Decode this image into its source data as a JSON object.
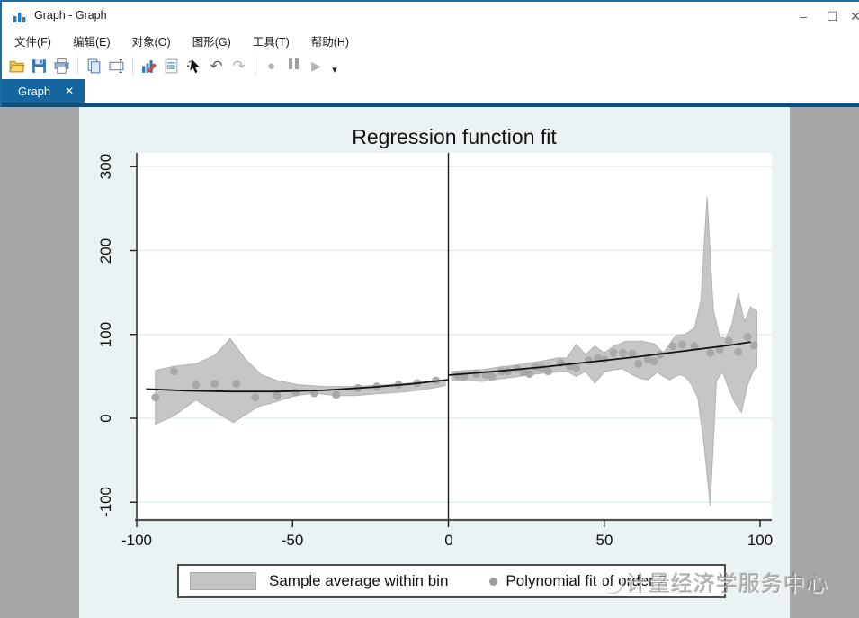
{
  "window": {
    "title": "Graph - Graph",
    "controls": {
      "minimize": "–",
      "maximize": "☐",
      "close": "✕"
    }
  },
  "menu": {
    "items": [
      "文件(F)",
      "编辑(E)",
      "对象(O)",
      "图形(G)",
      "工具(T)",
      "帮助(H)"
    ]
  },
  "toolbar": {
    "icons": [
      "open-folder",
      "save",
      "print",
      "copy",
      "rename",
      "graph-editor",
      "log",
      "pointer-deselect",
      "undo",
      "redo",
      "record",
      "pause",
      "play",
      "more"
    ],
    "undo_glyph": "↶",
    "redo_glyph": "↷",
    "record_glyph": "●",
    "play_glyph": "▶",
    "more_glyph": "▾"
  },
  "tab": {
    "label": "Graph",
    "close": "✕"
  },
  "watermark": {
    "text": "计量经济学服务中心"
  },
  "chart_data": {
    "type": "scatter",
    "title": "Regression function fit",
    "xlabel": "",
    "ylabel": "",
    "xlim": [
      -100,
      100
    ],
    "ylim": [
      -100,
      300
    ],
    "x_ticks": [
      -100,
      -50,
      0,
      50,
      100
    ],
    "y_ticks": [
      -100,
      0,
      100,
      200,
      300
    ],
    "grid": "horizontal",
    "cutoff_x": 0,
    "legend_position": "bottom",
    "colors": {
      "band": "#c4c4c4",
      "band_edge": "#b2b2b2",
      "marker": "#a6a6a6",
      "line": "#141414",
      "plot_bg": "#ffffff",
      "outer_bg": "#eaf2f3",
      "grid": "#dfeaec",
      "accent_blue": "#15659e"
    },
    "legend": [
      {
        "symbol": "area",
        "label": "Sample average within bin"
      },
      {
        "symbol": "marker",
        "label": "Polynomial fit of order 2"
      }
    ],
    "scatter_points": [
      [
        -94,
        25
      ],
      [
        -88,
        56
      ],
      [
        -81,
        40
      ],
      [
        -75,
        41
      ],
      [
        -68,
        41
      ],
      [
        -62,
        25
      ],
      [
        -55,
        27
      ],
      [
        -49,
        31
      ],
      [
        -43,
        30
      ],
      [
        -36,
        28
      ],
      [
        -29,
        36
      ],
      [
        -23,
        38
      ],
      [
        -16,
        40
      ],
      [
        -10,
        42
      ],
      [
        -4,
        45
      ],
      [
        3,
        51
      ],
      [
        5,
        50
      ],
      [
        9,
        53
      ],
      [
        12,
        52
      ],
      [
        14,
        50
      ],
      [
        17,
        56
      ],
      [
        19,
        56
      ],
      [
        22,
        59
      ],
      [
        24,
        55
      ],
      [
        26,
        53
      ],
      [
        28,
        61
      ],
      [
        30,
        60
      ],
      [
        32,
        56
      ],
      [
        36,
        66
      ],
      [
        39,
        62
      ],
      [
        41,
        60
      ],
      [
        45,
        69
      ],
      [
        48,
        72
      ],
      [
        50,
        70
      ],
      [
        53,
        78
      ],
      [
        56,
        78
      ],
      [
        59,
        77
      ],
      [
        61,
        65
      ],
      [
        64,
        70
      ],
      [
        66,
        68
      ],
      [
        68,
        76
      ],
      [
        72,
        86
      ],
      [
        75,
        88
      ],
      [
        79,
        86
      ],
      [
        84,
        78
      ],
      [
        87,
        82
      ],
      [
        90,
        92
      ],
      [
        93,
        79
      ],
      [
        96,
        97
      ],
      [
        98,
        87
      ]
    ],
    "fit_line": {
      "left": [
        [
          -97,
          35
        ],
        [
          -85,
          33
        ],
        [
          -70,
          32
        ],
        [
          -55,
          32
        ],
        [
          -40,
          33.5
        ],
        [
          -25,
          37
        ],
        [
          -12,
          41
        ],
        [
          0,
          46
        ]
      ],
      "right": [
        [
          0,
          51.5
        ],
        [
          15,
          56
        ],
        [
          30,
          61
        ],
        [
          45,
          67
        ],
        [
          60,
          73
        ],
        [
          75,
          80
        ],
        [
          90,
          87
        ],
        [
          97,
          91
        ]
      ]
    },
    "band": {
      "left": {
        "upper": [
          [
            -94,
            57
          ],
          [
            -88,
            62
          ],
          [
            -81,
            65
          ],
          [
            -75,
            75
          ],
          [
            -70,
            95
          ],
          [
            -65,
            70
          ],
          [
            -60,
            52
          ],
          [
            -55,
            45
          ],
          [
            -48,
            40
          ],
          [
            -40,
            38
          ],
          [
            -32,
            38
          ],
          [
            -24,
            39
          ],
          [
            -16,
            41
          ],
          [
            -8,
            43
          ],
          [
            -1,
            46
          ]
        ],
        "lower": [
          [
            -94,
            -7
          ],
          [
            -88,
            3
          ],
          [
            -81,
            22
          ],
          [
            -75,
            8
          ],
          [
            -69,
            -5
          ],
          [
            -61,
            14
          ],
          [
            -56,
            19
          ],
          [
            -49,
            27
          ],
          [
            -43,
            30
          ],
          [
            -36,
            27
          ],
          [
            -30,
            27
          ],
          [
            -24,
            29
          ],
          [
            -16,
            31
          ],
          [
            -8,
            34
          ],
          [
            -1,
            39
          ]
        ]
      },
      "right": {
        "upper": [
          [
            1,
            56
          ],
          [
            6,
            57
          ],
          [
            11,
            58
          ],
          [
            16,
            61
          ],
          [
            21,
            63
          ],
          [
            26,
            66
          ],
          [
            31,
            69
          ],
          [
            35,
            72
          ],
          [
            38,
            72
          ],
          [
            41,
            88
          ],
          [
            44,
            76
          ],
          [
            47,
            86
          ],
          [
            50,
            78
          ],
          [
            53,
            86
          ],
          [
            57,
            92
          ],
          [
            62,
            92
          ],
          [
            66,
            89
          ],
          [
            69,
            78
          ],
          [
            73,
            99
          ],
          [
            76,
            100
          ],
          [
            79,
            108
          ],
          [
            81,
            140
          ],
          [
            83,
            264
          ],
          [
            85,
            130
          ],
          [
            87,
            97
          ],
          [
            89,
            95
          ],
          [
            91,
            112
          ],
          [
            93,
            149
          ],
          [
            95,
            115
          ],
          [
            97,
            133
          ],
          [
            99,
            127
          ]
        ],
        "lower": [
          [
            1,
            46
          ],
          [
            6,
            45
          ],
          [
            11,
            44
          ],
          [
            16,
            47
          ],
          [
            21,
            49
          ],
          [
            26,
            52
          ],
          [
            31,
            54
          ],
          [
            34,
            55
          ],
          [
            38,
            56
          ],
          [
            41,
            50
          ],
          [
            44,
            56
          ],
          [
            47,
            42
          ],
          [
            50,
            55
          ],
          [
            53,
            58
          ],
          [
            56,
            59
          ],
          [
            59,
            52
          ],
          [
            62,
            47
          ],
          [
            64,
            46
          ],
          [
            67,
            55
          ],
          [
            69,
            50
          ],
          [
            71,
            46
          ],
          [
            74,
            52
          ],
          [
            76,
            50
          ],
          [
            78,
            40
          ],
          [
            80,
            25
          ],
          [
            82,
            -30
          ],
          [
            84,
            -105
          ],
          [
            86,
            45
          ],
          [
            88,
            55
          ],
          [
            90,
            35
          ],
          [
            92,
            18
          ],
          [
            94,
            7
          ],
          [
            96,
            40
          ],
          [
            98,
            58
          ],
          [
            99,
            61
          ]
        ]
      }
    }
  }
}
